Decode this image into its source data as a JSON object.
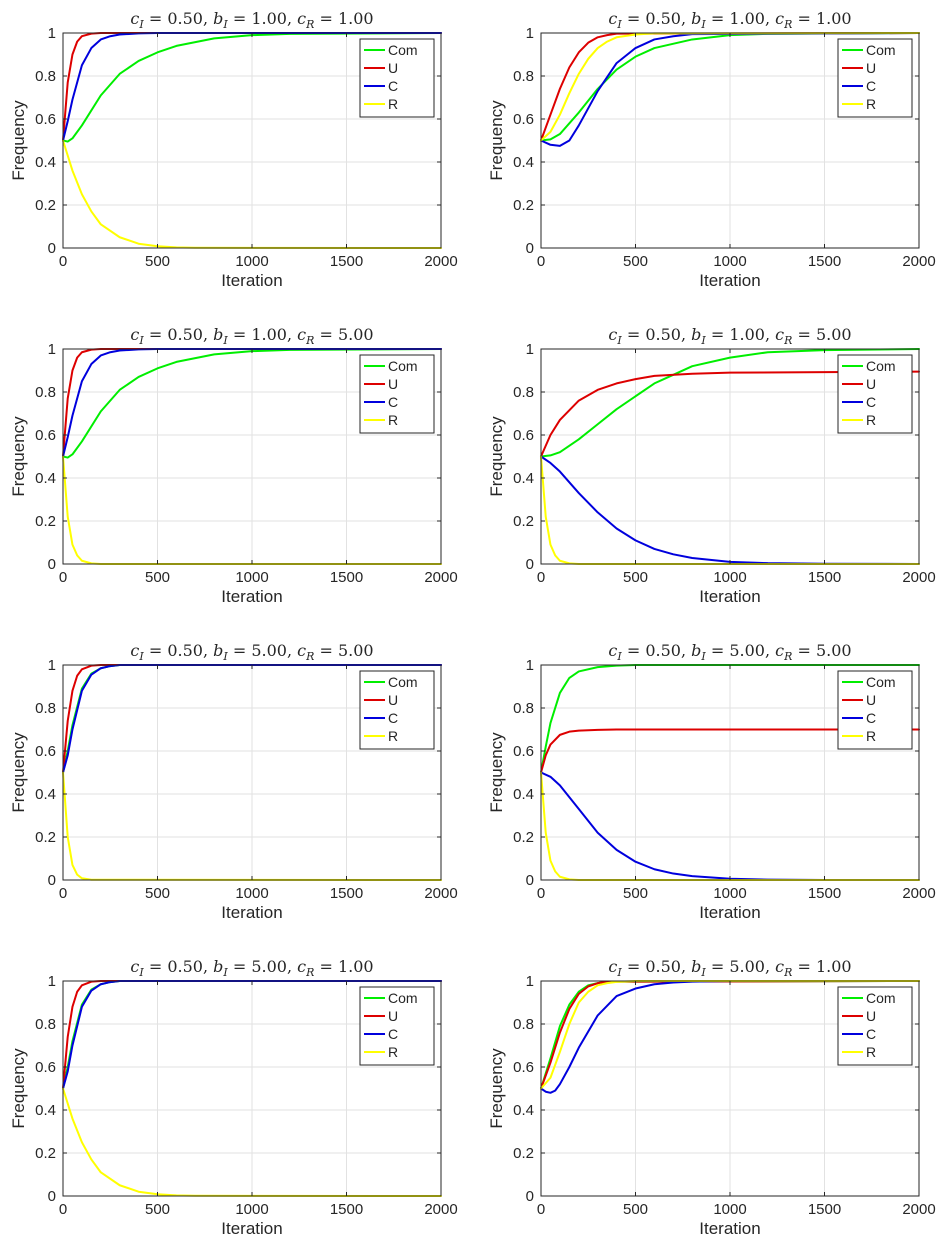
{
  "figure": {
    "colors": {
      "Com": "#00ee00",
      "U": "#dd0000",
      "C": "#0000dd",
      "R": "#ffff00",
      "grid": "#e2e2e2",
      "axis": "#262626"
    },
    "xlabel": "Iteration",
    "ylabel": "Frequency",
    "legend_entries": [
      "Com",
      "U",
      "C",
      "R"
    ],
    "legend_position": "top-right"
  },
  "chart_data": [
    {
      "type": "line",
      "title": "c_I = 0.50, b_I = 1.00, c_R = 1.00",
      "xlabel": "Iteration",
      "ylabel": "Frequency",
      "xlim": [
        0,
        2000
      ],
      "ylim": [
        0,
        1
      ],
      "xticks": [
        0,
        500,
        1000,
        1500,
        2000
      ],
      "yticks": [
        0,
        0.2,
        0.4,
        0.6,
        0.8,
        1
      ],
      "grid": true,
      "legend": "top-right",
      "series": [
        {
          "name": "Com",
          "x": [
            0,
            25,
            50,
            100,
            200,
            300,
            400,
            500,
            600,
            800,
            1000,
            1200,
            2000
          ],
          "y": [
            0.5,
            0.495,
            0.51,
            0.57,
            0.71,
            0.81,
            0.87,
            0.91,
            0.94,
            0.975,
            0.99,
            0.996,
            1.0
          ]
        },
        {
          "name": "U",
          "x": [
            0,
            25,
            50,
            75,
            100,
            150,
            200,
            300,
            2000
          ],
          "y": [
            0.5,
            0.77,
            0.9,
            0.96,
            0.985,
            0.997,
            1.0,
            1.0,
            1.0
          ]
        },
        {
          "name": "C",
          "x": [
            0,
            25,
            50,
            100,
            150,
            200,
            250,
            300,
            400,
            500,
            2000
          ],
          "y": [
            0.5,
            0.59,
            0.69,
            0.85,
            0.93,
            0.97,
            0.985,
            0.993,
            0.998,
            1.0,
            1.0
          ]
        },
        {
          "name": "R",
          "x": [
            0,
            50,
            100,
            150,
            200,
            300,
            400,
            500,
            600,
            700,
            2000
          ],
          "y": [
            0.5,
            0.36,
            0.25,
            0.17,
            0.11,
            0.05,
            0.02,
            0.008,
            0.003,
            0.001,
            0.0
          ]
        }
      ]
    },
    {
      "type": "line",
      "title": "c_I = 0.50, b_I = 1.00, c_R = 1.00",
      "xlabel": "Iteration",
      "ylabel": "Frequency",
      "xlim": [
        0,
        2000
      ],
      "ylim": [
        0,
        1
      ],
      "xticks": [
        0,
        500,
        1000,
        1500,
        2000
      ],
      "yticks": [
        0,
        0.2,
        0.4,
        0.6,
        0.8,
        1
      ],
      "grid": true,
      "legend": "top-right",
      "series": [
        {
          "name": "Com",
          "x": [
            0,
            50,
            100,
            200,
            300,
            400,
            500,
            600,
            800,
            1000,
            1200,
            2000
          ],
          "y": [
            0.5,
            0.505,
            0.53,
            0.63,
            0.74,
            0.83,
            0.89,
            0.93,
            0.97,
            0.99,
            0.996,
            1.0
          ]
        },
        {
          "name": "U",
          "x": [
            0,
            50,
            100,
            150,
            200,
            250,
            300,
            350,
            400,
            2000
          ],
          "y": [
            0.5,
            0.62,
            0.74,
            0.84,
            0.91,
            0.955,
            0.98,
            0.99,
            0.997,
            1.0
          ]
        },
        {
          "name": "C",
          "x": [
            0,
            50,
            100,
            150,
            200,
            300,
            400,
            500,
            600,
            700,
            800,
            2000
          ],
          "y": [
            0.5,
            0.48,
            0.475,
            0.5,
            0.57,
            0.73,
            0.86,
            0.93,
            0.97,
            0.985,
            0.995,
            1.0
          ]
        },
        {
          "name": "R",
          "x": [
            0,
            50,
            100,
            150,
            200,
            250,
            300,
            350,
            400,
            500,
            600,
            2000
          ],
          "y": [
            0.5,
            0.54,
            0.62,
            0.72,
            0.81,
            0.88,
            0.93,
            0.96,
            0.98,
            0.993,
            0.998,
            1.0
          ]
        }
      ]
    },
    {
      "type": "line",
      "title": "c_I = 0.50, b_I = 1.00, c_R = 5.00",
      "xlabel": "Iteration",
      "ylabel": "Frequency",
      "xlim": [
        0,
        2000
      ],
      "ylim": [
        0,
        1
      ],
      "xticks": [
        0,
        500,
        1000,
        1500,
        2000
      ],
      "yticks": [
        0,
        0.2,
        0.4,
        0.6,
        0.8,
        1
      ],
      "grid": true,
      "legend": "top-right",
      "series": [
        {
          "name": "Com",
          "x": [
            0,
            25,
            50,
            100,
            200,
            300,
            400,
            500,
            600,
            800,
            1000,
            1200,
            2000
          ],
          "y": [
            0.5,
            0.495,
            0.51,
            0.57,
            0.71,
            0.81,
            0.87,
            0.91,
            0.94,
            0.975,
            0.99,
            0.996,
            1.0
          ]
        },
        {
          "name": "U",
          "x": [
            0,
            25,
            50,
            75,
            100,
            150,
            200,
            300,
            2000
          ],
          "y": [
            0.5,
            0.77,
            0.9,
            0.96,
            0.985,
            0.997,
            1.0,
            1.0,
            1.0
          ]
        },
        {
          "name": "C",
          "x": [
            0,
            25,
            50,
            100,
            150,
            200,
            250,
            300,
            400,
            500,
            2000
          ],
          "y": [
            0.5,
            0.59,
            0.69,
            0.85,
            0.93,
            0.97,
            0.985,
            0.993,
            0.998,
            1.0,
            1.0
          ]
        },
        {
          "name": "R",
          "x": [
            0,
            25,
            50,
            75,
            100,
            150,
            200,
            2000
          ],
          "y": [
            0.5,
            0.22,
            0.09,
            0.04,
            0.015,
            0.003,
            0.0,
            0.0
          ]
        }
      ]
    },
    {
      "type": "line",
      "title": "c_I = 0.50, b_I = 1.00, c_R = 5.00",
      "xlabel": "Iteration",
      "ylabel": "Frequency",
      "xlim": [
        0,
        2000
      ],
      "ylim": [
        0,
        1
      ],
      "xticks": [
        0,
        500,
        1000,
        1500,
        2000
      ],
      "yticks": [
        0,
        0.2,
        0.4,
        0.6,
        0.8,
        1
      ],
      "grid": true,
      "legend": "top-right",
      "series": [
        {
          "name": "Com",
          "x": [
            0,
            50,
            100,
            200,
            300,
            400,
            500,
            600,
            700,
            800,
            1000,
            1200,
            1500,
            2000
          ],
          "y": [
            0.5,
            0.505,
            0.52,
            0.58,
            0.65,
            0.72,
            0.78,
            0.84,
            0.88,
            0.92,
            0.96,
            0.985,
            0.995,
            1.0
          ]
        },
        {
          "name": "U",
          "x": [
            0,
            50,
            100,
            200,
            300,
            400,
            500,
            600,
            800,
            1000,
            2000
          ],
          "y": [
            0.5,
            0.6,
            0.67,
            0.76,
            0.81,
            0.84,
            0.86,
            0.875,
            0.885,
            0.89,
            0.895
          ]
        },
        {
          "name": "C",
          "x": [
            0,
            50,
            100,
            200,
            300,
            400,
            500,
            600,
            700,
            800,
            1000,
            1200,
            1500,
            2000
          ],
          "y": [
            0.5,
            0.47,
            0.43,
            0.33,
            0.24,
            0.165,
            0.11,
            0.07,
            0.045,
            0.028,
            0.01,
            0.004,
            0.001,
            0.0
          ]
        },
        {
          "name": "R",
          "x": [
            0,
            25,
            50,
            75,
            100,
            150,
            200,
            2000
          ],
          "y": [
            0.5,
            0.22,
            0.09,
            0.04,
            0.015,
            0.003,
            0.0,
            0.0
          ]
        }
      ]
    },
    {
      "type": "line",
      "title": "c_I = 0.50, b_I = 5.00, c_R = 5.00",
      "xlabel": "Iteration",
      "ylabel": "Frequency",
      "xlim": [
        0,
        2000
      ],
      "ylim": [
        0,
        1
      ],
      "xticks": [
        0,
        500,
        1000,
        1500,
        2000
      ],
      "yticks": [
        0,
        0.2,
        0.4,
        0.6,
        0.8,
        1
      ],
      "grid": true,
      "legend": "top-right",
      "series": [
        {
          "name": "Com",
          "x": [
            0,
            25,
            50,
            100,
            150,
            200,
            250,
            300,
            2000
          ],
          "y": [
            0.5,
            0.6,
            0.72,
            0.89,
            0.96,
            0.985,
            0.995,
            1.0,
            1.0
          ]
        },
        {
          "name": "U",
          "x": [
            0,
            25,
            50,
            75,
            100,
            150,
            200,
            2000
          ],
          "y": [
            0.5,
            0.74,
            0.88,
            0.95,
            0.98,
            0.997,
            1.0,
            1.0
          ]
        },
        {
          "name": "C",
          "x": [
            0,
            25,
            50,
            100,
            150,
            200,
            250,
            300,
            2000
          ],
          "y": [
            0.5,
            0.58,
            0.7,
            0.88,
            0.955,
            0.985,
            0.995,
            1.0,
            1.0
          ]
        },
        {
          "name": "R",
          "x": [
            0,
            25,
            50,
            75,
            100,
            150,
            2000
          ],
          "y": [
            0.5,
            0.2,
            0.07,
            0.025,
            0.008,
            0.001,
            0.0
          ]
        }
      ]
    },
    {
      "type": "line",
      "title": "c_I = 0.50, b_I = 5.00, c_R = 5.00",
      "xlabel": "Iteration",
      "ylabel": "Frequency",
      "xlim": [
        0,
        2000
      ],
      "ylim": [
        0,
        1
      ],
      "xticks": [
        0,
        500,
        1000,
        1500,
        2000
      ],
      "yticks": [
        0,
        0.2,
        0.4,
        0.6,
        0.8,
        1
      ],
      "grid": true,
      "legend": "top-right",
      "series": [
        {
          "name": "Com",
          "x": [
            0,
            25,
            50,
            100,
            150,
            200,
            300,
            400,
            500,
            2000
          ],
          "y": [
            0.5,
            0.62,
            0.73,
            0.87,
            0.94,
            0.97,
            0.99,
            0.997,
            1.0,
            1.0
          ]
        },
        {
          "name": "U",
          "x": [
            0,
            25,
            50,
            100,
            150,
            200,
            300,
            400,
            2000
          ],
          "y": [
            0.5,
            0.58,
            0.63,
            0.675,
            0.69,
            0.695,
            0.698,
            0.7,
            0.7
          ]
        },
        {
          "name": "C",
          "x": [
            0,
            50,
            100,
            200,
            300,
            400,
            500,
            600,
            700,
            800,
            1000,
            1200,
            1500,
            2000
          ],
          "y": [
            0.5,
            0.48,
            0.44,
            0.33,
            0.22,
            0.14,
            0.085,
            0.05,
            0.03,
            0.018,
            0.006,
            0.002,
            0.0,
            0.0
          ]
        },
        {
          "name": "R",
          "x": [
            0,
            25,
            50,
            75,
            100,
            150,
            200,
            2000
          ],
          "y": [
            0.5,
            0.22,
            0.09,
            0.04,
            0.015,
            0.003,
            0.0,
            0.0
          ]
        }
      ]
    },
    {
      "type": "line",
      "title": "c_I = 0.50, b_I = 5.00, c_R = 1.00",
      "xlabel": "Iteration",
      "ylabel": "Frequency",
      "xlim": [
        0,
        2000
      ],
      "ylim": [
        0,
        1
      ],
      "xticks": [
        0,
        500,
        1000,
        1500,
        2000
      ],
      "yticks": [
        0,
        0.2,
        0.4,
        0.6,
        0.8,
        1
      ],
      "grid": true,
      "legend": "top-right",
      "series": [
        {
          "name": "Com",
          "x": [
            0,
            25,
            50,
            100,
            150,
            200,
            250,
            300,
            2000
          ],
          "y": [
            0.5,
            0.6,
            0.72,
            0.89,
            0.96,
            0.985,
            0.995,
            1.0,
            1.0
          ]
        },
        {
          "name": "U",
          "x": [
            0,
            25,
            50,
            75,
            100,
            150,
            200,
            2000
          ],
          "y": [
            0.5,
            0.74,
            0.88,
            0.95,
            0.98,
            0.997,
            1.0,
            1.0
          ]
        },
        {
          "name": "C",
          "x": [
            0,
            25,
            50,
            100,
            150,
            200,
            250,
            300,
            2000
          ],
          "y": [
            0.5,
            0.58,
            0.7,
            0.88,
            0.955,
            0.985,
            0.995,
            1.0,
            1.0
          ]
        },
        {
          "name": "R",
          "x": [
            0,
            50,
            100,
            150,
            200,
            300,
            400,
            500,
            600,
            700,
            2000
          ],
          "y": [
            0.5,
            0.36,
            0.25,
            0.17,
            0.11,
            0.05,
            0.02,
            0.008,
            0.003,
            0.001,
            0.0
          ]
        }
      ]
    },
    {
      "type": "line",
      "title": "c_I = 0.50, b_I = 5.00, c_R = 1.00",
      "xlabel": "Iteration",
      "ylabel": "Frequency",
      "xlim": [
        0,
        2000
      ],
      "ylim": [
        0,
        1
      ],
      "xticks": [
        0,
        500,
        1000,
        1500,
        2000
      ],
      "yticks": [
        0,
        0.2,
        0.4,
        0.6,
        0.8,
        1
      ],
      "grid": true,
      "legend": "top-right",
      "series": [
        {
          "name": "Com",
          "x": [
            0,
            50,
            100,
            150,
            200,
            250,
            300,
            350,
            2000
          ],
          "y": [
            0.5,
            0.64,
            0.79,
            0.89,
            0.95,
            0.98,
            0.99,
            0.997,
            1.0
          ]
        },
        {
          "name": "U",
          "x": [
            0,
            50,
            100,
            150,
            200,
            250,
            300,
            350,
            2000
          ],
          "y": [
            0.5,
            0.62,
            0.76,
            0.87,
            0.94,
            0.975,
            0.99,
            0.997,
            1.0
          ]
        },
        {
          "name": "C",
          "x": [
            0,
            25,
            50,
            75,
            100,
            150,
            200,
            300,
            400,
            500,
            600,
            700,
            800,
            1000,
            2000
          ],
          "y": [
            0.5,
            0.485,
            0.48,
            0.49,
            0.52,
            0.6,
            0.69,
            0.84,
            0.93,
            0.965,
            0.985,
            0.993,
            0.997,
            1.0,
            1.0
          ]
        },
        {
          "name": "R",
          "x": [
            0,
            50,
            100,
            150,
            200,
            250,
            300,
            350,
            400,
            500,
            2000
          ],
          "y": [
            0.5,
            0.55,
            0.67,
            0.8,
            0.9,
            0.95,
            0.98,
            0.99,
            0.996,
            1.0,
            1.0
          ]
        }
      ]
    }
  ]
}
